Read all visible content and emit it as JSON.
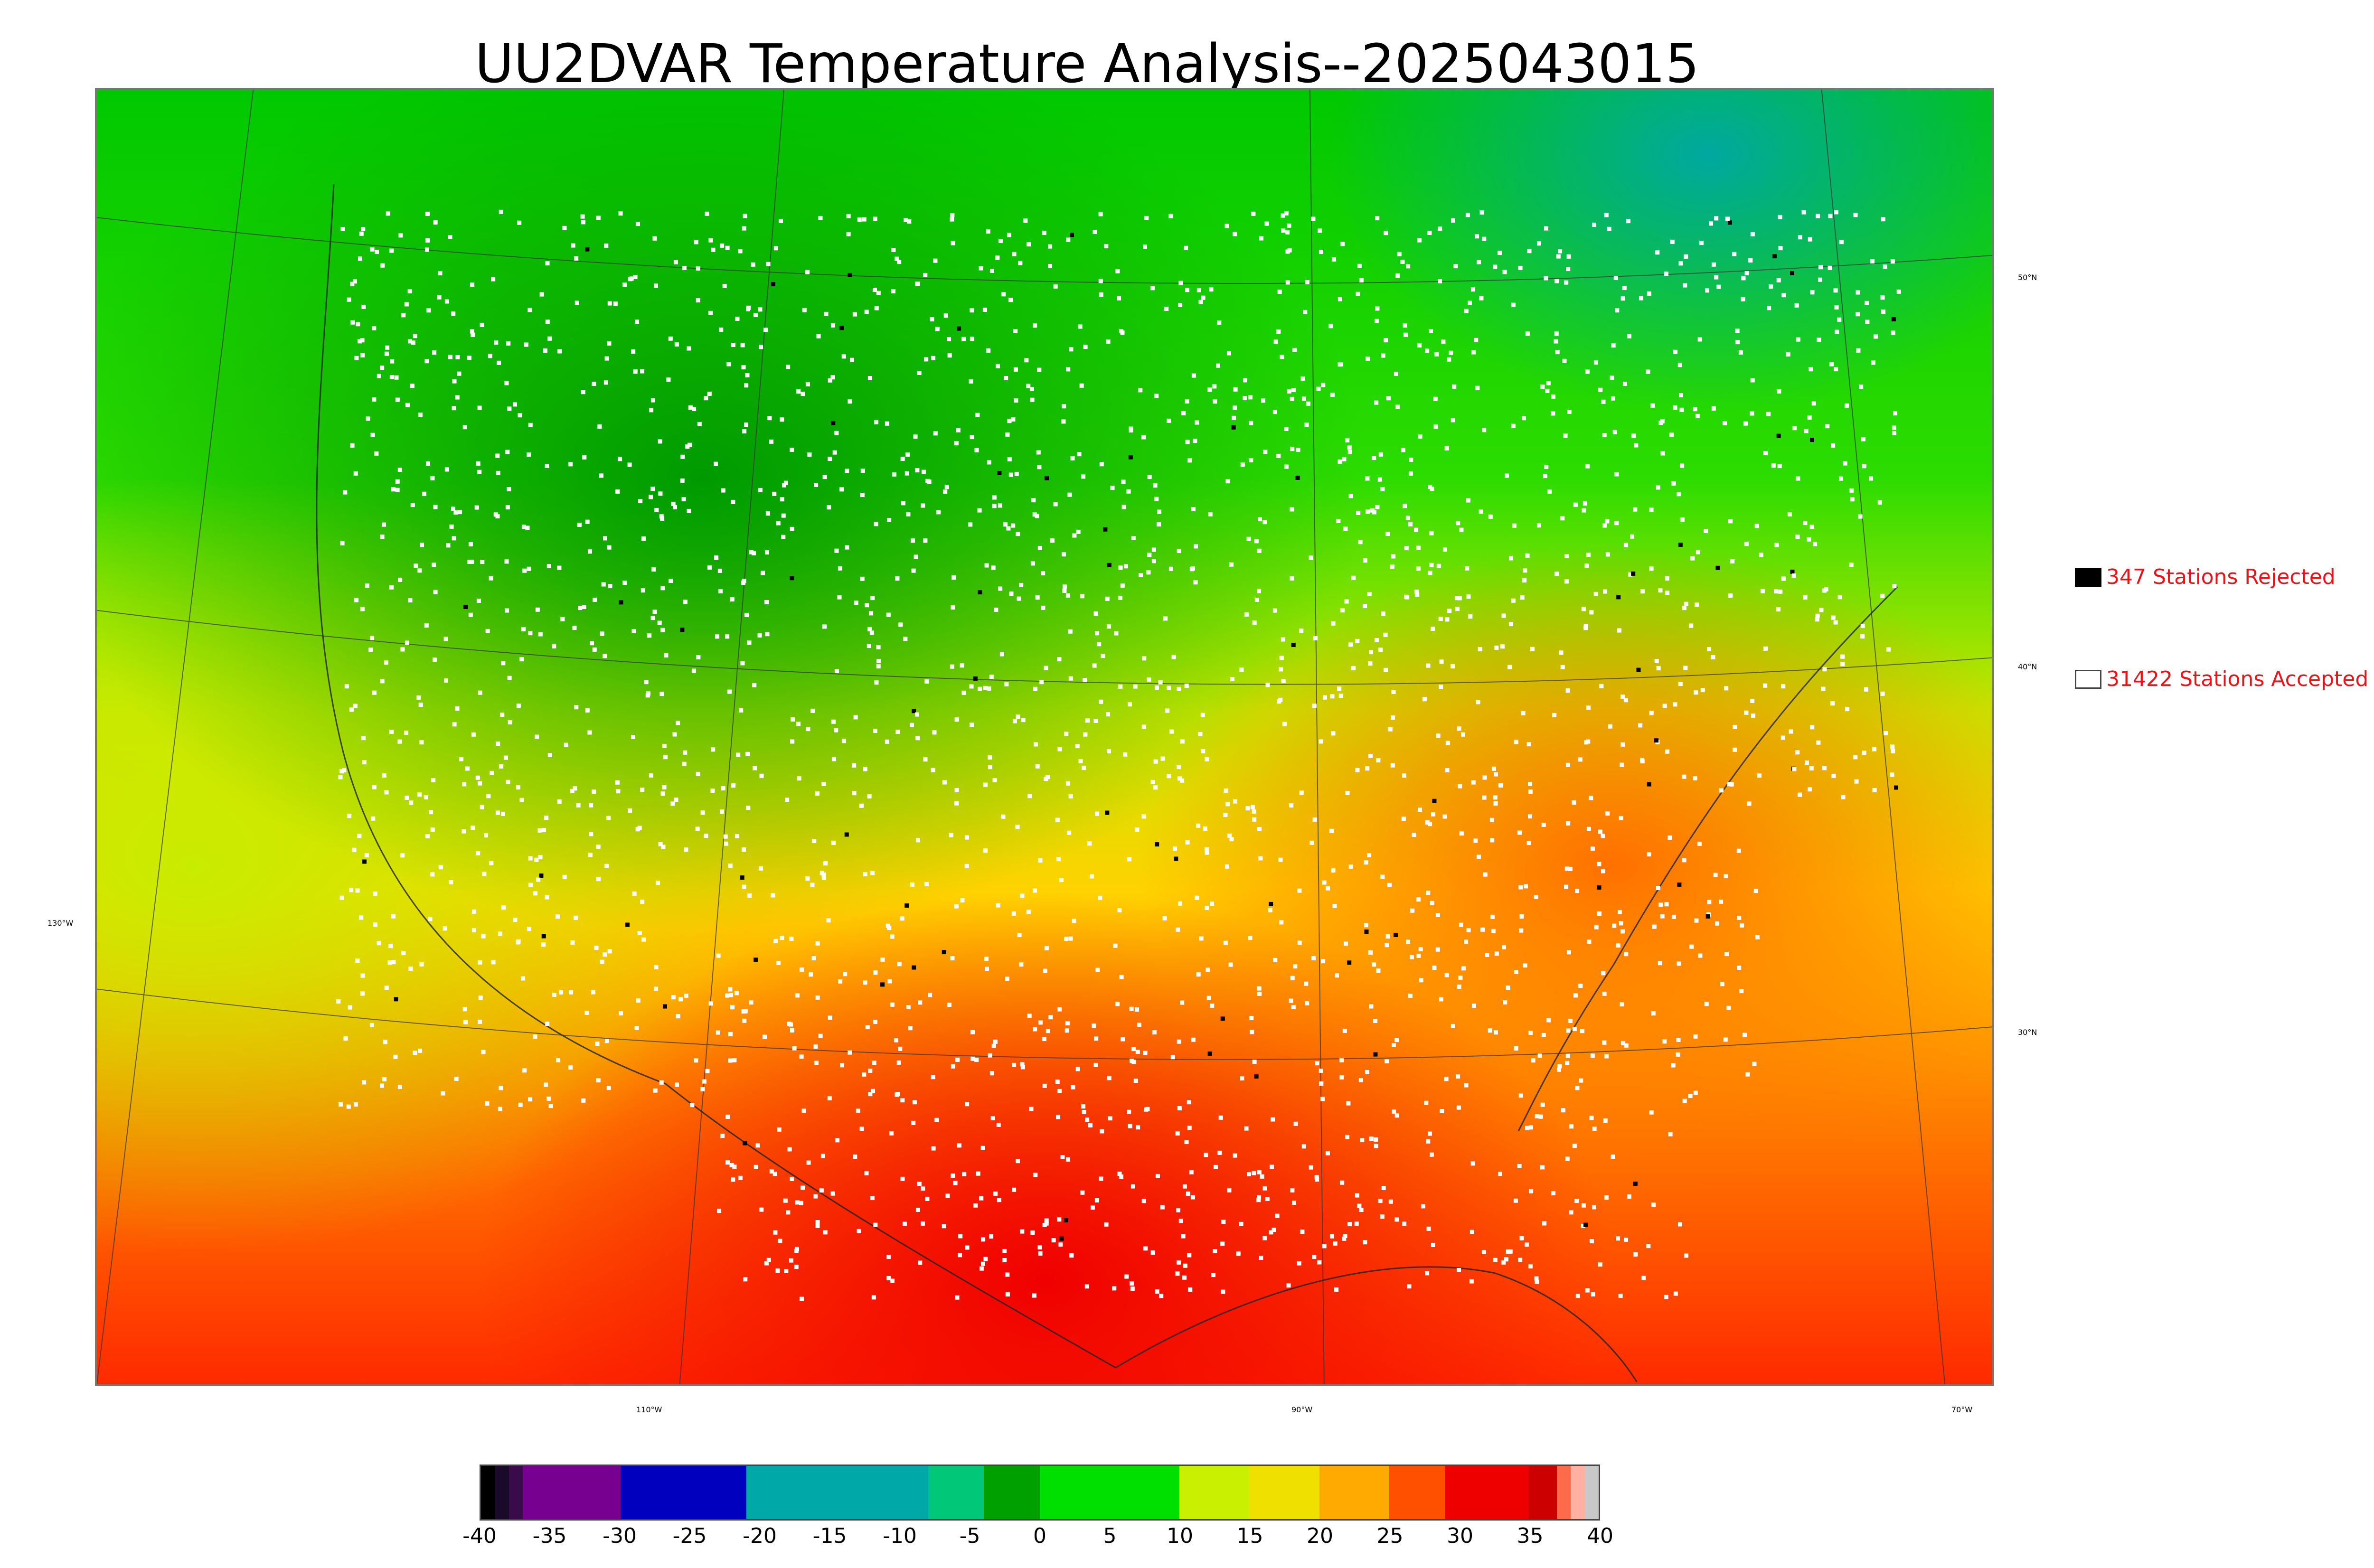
{
  "title": "UU2DVAR Temperature Analysis--2025043015",
  "legend": {
    "rejected": {
      "label": "347 Stations Rejected",
      "color": "#000000"
    },
    "accepted": {
      "label": "31422 Stations Accepted",
      "color": "#ffffff"
    }
  },
  "lat_labels": [
    "50°N",
    "40°N",
    "30°N"
  ],
  "lon_labels": [
    "130°W",
    "110°W",
    "90°W",
    "70°W"
  ],
  "colorbar": {
    "ticks": [
      "-40",
      "-35",
      "-30",
      "-25",
      "-20",
      "-15",
      "-10",
      "-5",
      "0",
      "5",
      "10",
      "15",
      "20",
      "25",
      "30",
      "35",
      "40"
    ],
    "range": [
      -40,
      40
    ],
    "colors": [
      {
        "from": -40,
        "to": -39,
        "color": "#000000"
      },
      {
        "from": -39,
        "to": -38,
        "color": "#1a0a2a"
      },
      {
        "from": -38,
        "to": -37,
        "color": "#3a0a4a"
      },
      {
        "from": -37,
        "to": -30,
        "color": "#780090"
      },
      {
        "from": -30,
        "to": -21,
        "color": "#0000be"
      },
      {
        "from": -21,
        "to": -8,
        "color": "#00a8a8"
      },
      {
        "from": -8,
        "to": -4,
        "color": "#00c878"
      },
      {
        "from": -4,
        "to": 0,
        "color": "#00a000"
      },
      {
        "from": 0,
        "to": 10,
        "color": "#00e000"
      },
      {
        "from": 10,
        "to": 15,
        "color": "#c8f000"
      },
      {
        "from": 15,
        "to": 20,
        "color": "#f0e000"
      },
      {
        "from": 20,
        "to": 25,
        "color": "#ffaa00"
      },
      {
        "from": 25,
        "to": 29,
        "color": "#ff5000"
      },
      {
        "from": 29,
        "to": 35,
        "color": "#ee0000"
      },
      {
        "from": 35,
        "to": 37,
        "color": "#cc0000"
      },
      {
        "from": 37,
        "to": 38,
        "color": "#ff6a4a"
      },
      {
        "from": 38,
        "to": 39,
        "color": "#ffb0a0"
      },
      {
        "from": 39,
        "to": 40,
        "color": "#c8c8c8"
      }
    ]
  }
}
